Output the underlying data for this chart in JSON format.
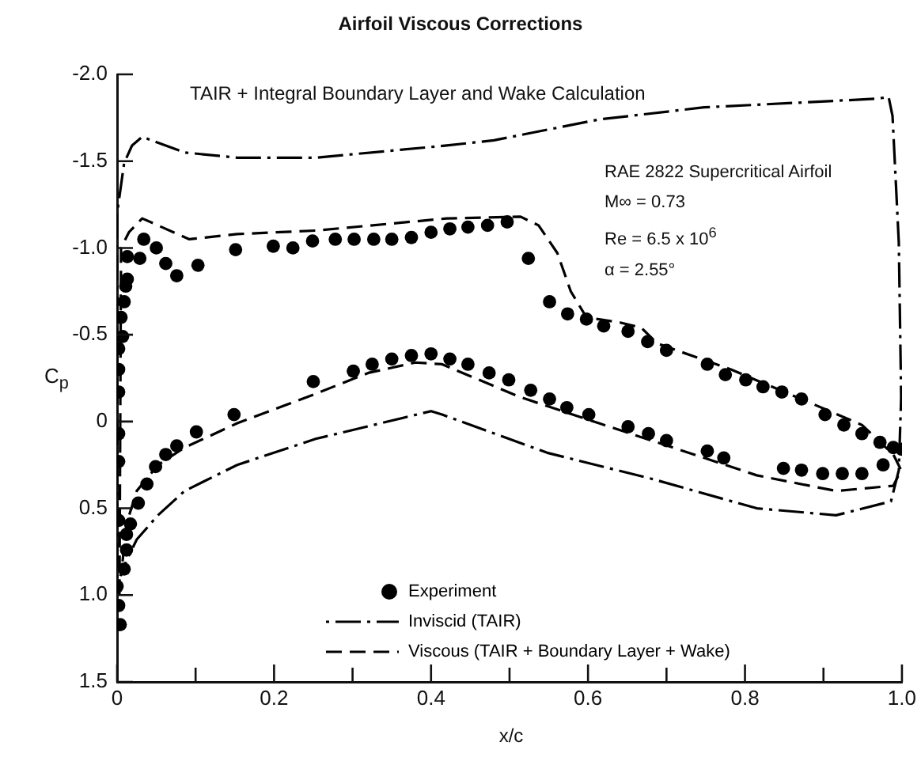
{
  "chart_data": {
    "type": "line",
    "title": "Airfoil Viscous Corrections",
    "subtitle": "TAIR + Integral Boundary Layer and Wake Calculation",
    "xlabel": "x/c",
    "ylabel": "C$_{p}$",
    "annotations": [
      "RAE 2822 Supercritical Airfoil",
      "M∞ = 0.73",
      "Re = 6.5 x 10$^{6}$",
      "α = 2.55°"
    ],
    "xlim": [
      0,
      1
    ],
    "xticks": [
      0,
      {
        "value": 0.1,
        "label": null
      },
      0.2,
      {
        "value": 0.3,
        "label": null
      },
      0.4,
      {
        "value": 0.5,
        "label": null
      },
      0.6,
      {
        "value": 0.7,
        "label": null
      },
      0.8,
      {
        "value": 0.9,
        "label": null
      },
      {
        "value": 1,
        "label": "1.0"
      }
    ],
    "ylim": [
      1.5,
      -2
    ],
    "yticks": [
      {
        "value": -2,
        "label": "-2.0"
      },
      -1.5,
      {
        "value": -1,
        "label": "-1.0"
      },
      -0.5,
      0,
      0.5,
      {
        "value": 1,
        "label": "1.0"
      },
      1.5
    ],
    "grid": false,
    "legend": "bottom",
    "series": [
      {
        "name": "Experiment",
        "type": "scatter",
        "color": "#000000",
        "marker": "circle",
        "x": [
          0.034,
          0.05,
          0.062,
          0.076,
          0.103,
          0.151,
          0.199,
          0.224,
          0.249,
          0.278,
          0.302,
          0.327,
          0.35,
          0.375,
          0.4,
          0.424,
          0.447,
          0.472,
          0.497,
          0.524,
          0.551,
          0.574,
          0.598,
          0.62,
          0.651,
          0.676,
          0.7,
          0.752,
          0.775,
          0.801,
          0.823,
          0.847,
          0.872,
          0.902,
          0.926,
          0.949,
          0.972,
          0.989,
          1.0,
          0.976,
          0.949,
          0.924,
          0.899,
          0.872,
          0.849,
          0.773,
          0.752,
          0.7,
          0.677,
          0.651,
          0.601,
          0.573,
          0.551,
          0.527,
          0.499,
          0.474,
          0.447,
          0.424,
          0.4,
          0.375,
          0.35,
          0.325,
          0.301,
          0.25,
          0.149,
          0.101,
          0.076,
          0.062,
          0.049,
          0.038,
          0.027,
          0.017,
          0.013,
          0.029,
          0.013,
          0.011,
          0.009,
          0.005,
          0.007,
          0.002,
          0.002,
          0.002,
          0.002,
          0.002,
          0.002,
          0.012,
          0.012,
          0.009,
          0,
          0.002,
          0.004
        ],
        "values": [
          -1.05,
          -1.0,
          -0.91,
          -0.84,
          -0.9,
          -0.99,
          -1.01,
          -1.0,
          -1.04,
          -1.05,
          -1.05,
          -1.05,
          -1.05,
          -1.06,
          -1.09,
          -1.11,
          -1.12,
          -1.13,
          -1.15,
          -0.94,
          -0.69,
          -0.62,
          -0.59,
          -0.55,
          -0.52,
          -0.46,
          -0.41,
          -0.33,
          -0.27,
          -0.24,
          -0.2,
          -0.17,
          -0.13,
          -0.04,
          0.02,
          0.07,
          0.12,
          0.15,
          0.16,
          0.25,
          0.3,
          0.3,
          0.3,
          0.28,
          0.27,
          0.21,
          0.17,
          0.11,
          0.07,
          0.03,
          -0.04,
          -0.08,
          -0.13,
          -0.18,
          -0.24,
          -0.28,
          -0.33,
          -0.36,
          -0.39,
          -0.38,
          -0.36,
          -0.33,
          -0.29,
          -0.23,
          -0.04,
          0.06,
          0.14,
          0.19,
          0.26,
          0.36,
          0.47,
          0.59,
          -0.95,
          -0.94,
          -0.82,
          -0.78,
          -0.69,
          -0.6,
          -0.49,
          -0.42,
          -0.3,
          -0.17,
          0.07,
          0.23,
          0.57,
          0.65,
          0.74,
          0.85,
          0.95,
          1.06,
          1.17
        ]
      },
      {
        "name": "Inviscid (TAIR)",
        "type": "line",
        "color": "#000000",
        "marker": "none",
        "line_style": "dashdot",
        "x": [
          0,
          0,
          0.009,
          0.019,
          0.032,
          0.086,
          0.153,
          0.253,
          0.42,
          0.48,
          0.614,
          0.748,
          0.882,
          0.969,
          0.983,
          0.988,
          0.996,
          0.999,
          0.996,
          0.986,
          0.916,
          0.815,
          0.681,
          0.548,
          0.414,
          0.4,
          0.253,
          0.153,
          0.086,
          0.052,
          0.025,
          0.012,
          0.004
        ],
        "values": [
          0.9,
          -1.2,
          -1.49,
          -1.59,
          -1.64,
          -1.55,
          -1.52,
          -1.52,
          -1.59,
          -1.62,
          -1.74,
          -1.81,
          -1.84,
          -1.86,
          -1.87,
          -1.76,
          -1.03,
          -0.14,
          0.28,
          0.46,
          0.54,
          0.5,
          0.33,
          0.18,
          -0.04,
          -0.06,
          0.1,
          0.25,
          0.4,
          0.54,
          0.68,
          0.8,
          0.89
        ]
      },
      {
        "name": "Viscous (TAIR + Boundary Layer + Wake)",
        "type": "line",
        "color": "#000000",
        "marker": "none",
        "line_style": "dashed",
        "x": [
          0.003,
          0.005,
          0.015,
          0.032,
          0.052,
          0.092,
          0.153,
          0.253,
          0.42,
          0.514,
          0.537,
          0.561,
          0.578,
          0.598,
          0.641,
          0.668,
          0.688,
          0.782,
          0.882,
          0.949,
          0.989,
          0.999,
          0.989,
          0.916,
          0.815,
          0.715,
          0.614,
          0.514,
          0.414,
          0.38,
          0.32,
          0.253,
          0.153,
          0.086,
          0.052,
          0.025,
          0.012,
          0.005
        ],
        "values": [
          1.0,
          -1.0,
          -1.09,
          -1.17,
          -1.13,
          -1.05,
          -1.08,
          -1.1,
          -1.17,
          -1.18,
          -1.13,
          -0.97,
          -0.75,
          -0.6,
          -0.57,
          -0.54,
          -0.45,
          -0.3,
          -0.11,
          0.02,
          0.19,
          0.28,
          0.37,
          0.4,
          0.31,
          0.16,
          0.01,
          -0.14,
          -0.33,
          -0.34,
          -0.28,
          -0.16,
          0.01,
          0.15,
          0.25,
          0.4,
          0.59,
          0.89
        ]
      }
    ]
  }
}
